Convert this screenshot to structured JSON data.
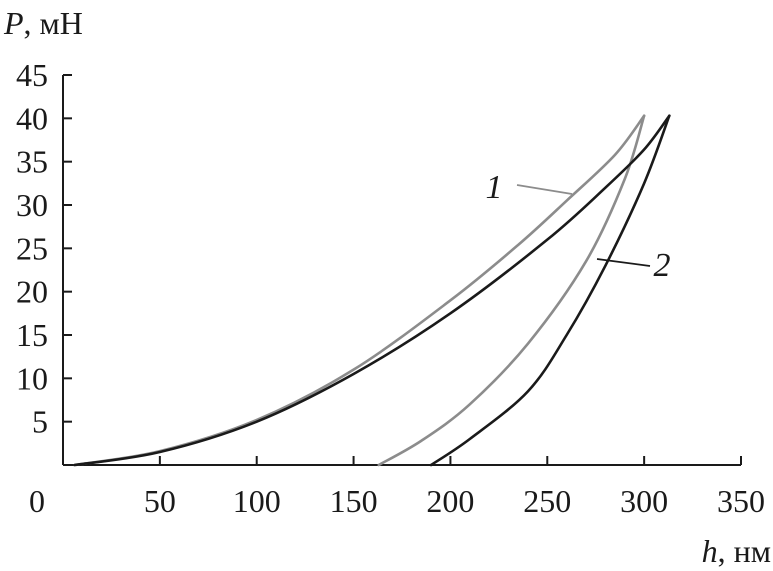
{
  "chart_data": {
    "type": "line",
    "y_axis": {
      "var": "P",
      "unit": ", мН",
      "range": [
        0,
        45
      ],
      "ticks": [
        5,
        10,
        15,
        20,
        25,
        30,
        35,
        40,
        45
      ]
    },
    "x_axis": {
      "var": "h",
      "unit": ", нм",
      "range": [
        0,
        350
      ],
      "ticks": [
        0,
        50,
        100,
        150,
        200,
        250,
        300,
        350
      ]
    },
    "grid": false,
    "series": [
      {
        "name": "1",
        "color": "#8c8c8c",
        "loading": [
          [
            6,
            0
          ],
          [
            50,
            1.6
          ],
          [
            100,
            5.2
          ],
          [
            150,
            11
          ],
          [
            200,
            19
          ],
          [
            235,
            25.4
          ],
          [
            260,
            30.5
          ],
          [
            285,
            35.8
          ],
          [
            300,
            40.3
          ]
        ],
        "unloading": [
          [
            300,
            40.3
          ],
          [
            290,
            33
          ],
          [
            270,
            23.5
          ],
          [
            240,
            14
          ],
          [
            210,
            7
          ],
          [
            185,
            2.8
          ],
          [
            163,
            0
          ]
        ]
      },
      {
        "name": "2",
        "color": "#1a1a1a",
        "loading": [
          [
            6,
            0
          ],
          [
            50,
            1.5
          ],
          [
            100,
            5
          ],
          [
            150,
            10.5
          ],
          [
            200,
            17.5
          ],
          [
            250,
            26
          ],
          [
            280,
            32
          ],
          [
            300,
            36.4
          ],
          [
            313,
            40.3
          ]
        ],
        "unloading": [
          [
            313,
            40.3
          ],
          [
            300,
            32.5
          ],
          [
            280,
            23
          ],
          [
            260,
            15
          ],
          [
            240,
            8.5
          ],
          [
            210,
            3
          ],
          [
            190,
            0
          ]
        ]
      }
    ]
  }
}
